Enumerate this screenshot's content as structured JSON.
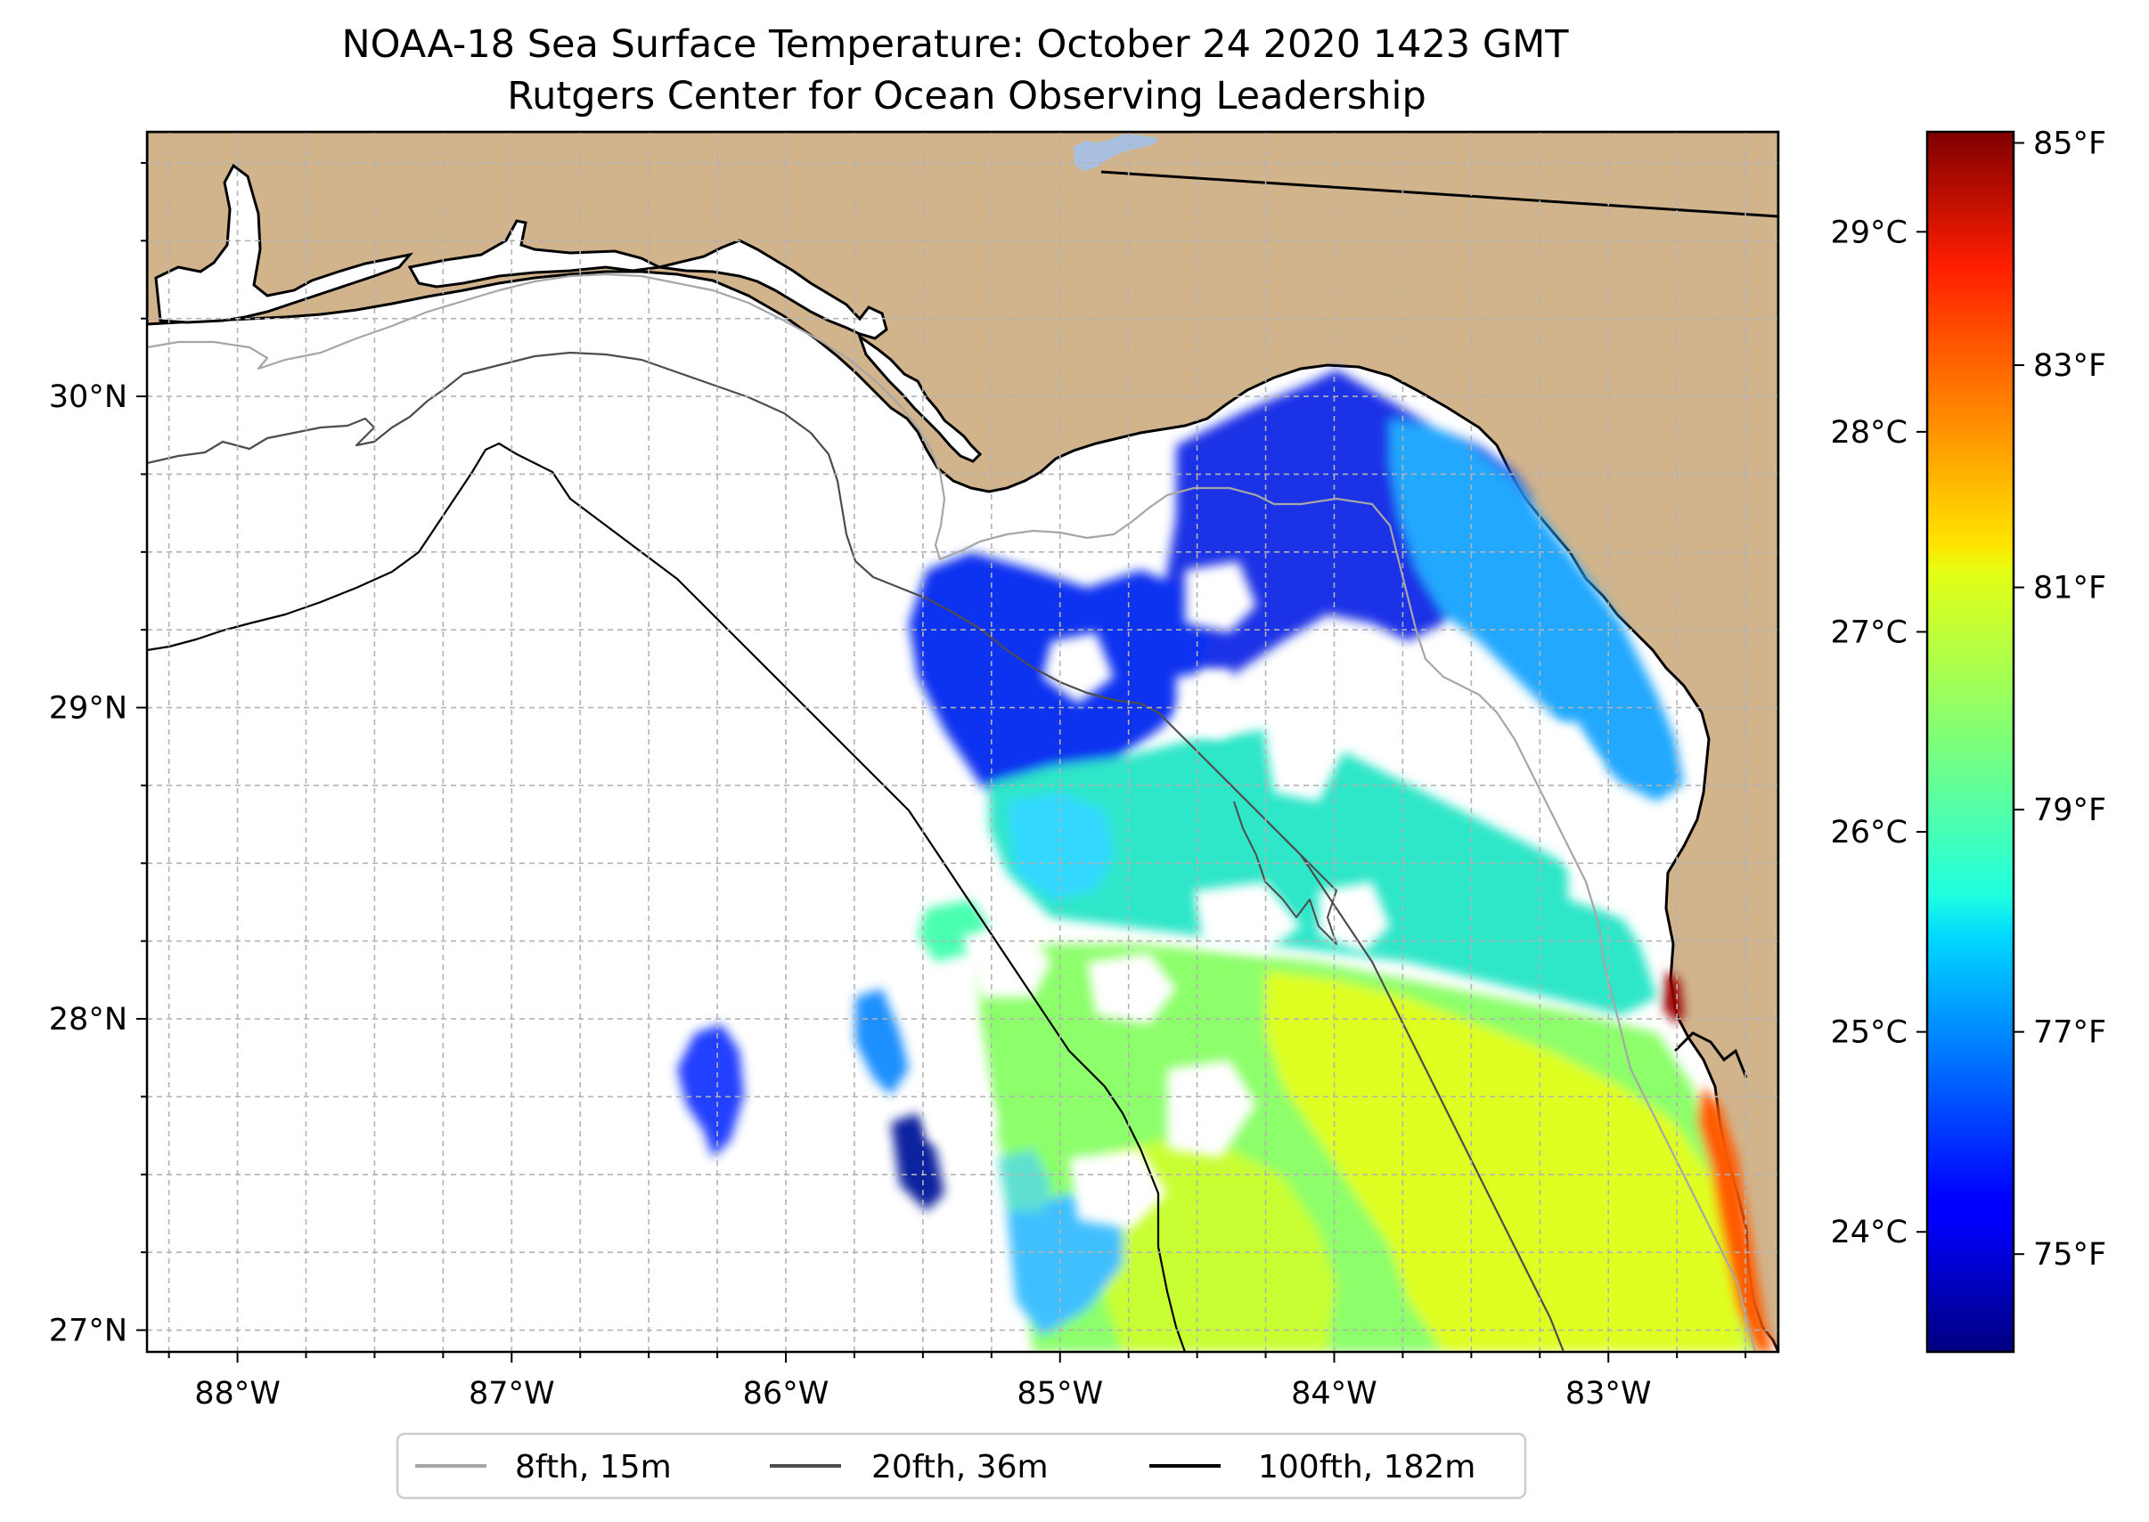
{
  "title": {
    "line1": "NOAA-18 Sea Surface Temperature: October 24 2020 1423 GMT",
    "line2": "Rutgers Center for Ocean Observing Leadership"
  },
  "map": {
    "lon_range": [
      -88.33,
      -82.38
    ],
    "lat_range": [
      26.93,
      30.85
    ],
    "lon_ticks": [
      {
        "value": -88,
        "label": "88°W"
      },
      {
        "value": -87,
        "label": "87°W"
      },
      {
        "value": -86,
        "label": "86°W"
      },
      {
        "value": -85,
        "label": "85°W"
      },
      {
        "value": -84,
        "label": "84°W"
      },
      {
        "value": -83,
        "label": "83°W"
      }
    ],
    "lat_ticks": [
      {
        "value": 27,
        "label": "27°N"
      },
      {
        "value": 28,
        "label": "28°N"
      },
      {
        "value": 29,
        "label": "29°N"
      },
      {
        "value": 30,
        "label": "30°N"
      }
    ],
    "grid_step_deg": 0.25,
    "land_color": "#d2b48c",
    "water_color": "#ffffff"
  },
  "colorbar": {
    "min_c": 23.4,
    "max_c": 29.5,
    "colormap": "jet",
    "celsius_ticks": [
      {
        "value": 24,
        "label": "24°C"
      },
      {
        "value": 25,
        "label": "25°C"
      },
      {
        "value": 26,
        "label": "26°C"
      },
      {
        "value": 27,
        "label": "27°C"
      },
      {
        "value": 28,
        "label": "28°C"
      },
      {
        "value": 29,
        "label": "29°C"
      }
    ],
    "fahrenheit_ticks": [
      {
        "value": 75,
        "label": "75°F"
      },
      {
        "value": 77,
        "label": "77°F"
      },
      {
        "value": 79,
        "label": "79°F"
      },
      {
        "value": 81,
        "label": "81°F"
      },
      {
        "value": 83,
        "label": "83°F"
      },
      {
        "value": 85,
        "label": "85°F"
      }
    ]
  },
  "legend": {
    "entries": [
      {
        "label": "8fth, 15m",
        "color": "#a6a6a6"
      },
      {
        "label": "20fth, 36m",
        "color": "#4d4d4d"
      },
      {
        "label": "100fth, 182m",
        "color": "#000000"
      }
    ]
  }
}
